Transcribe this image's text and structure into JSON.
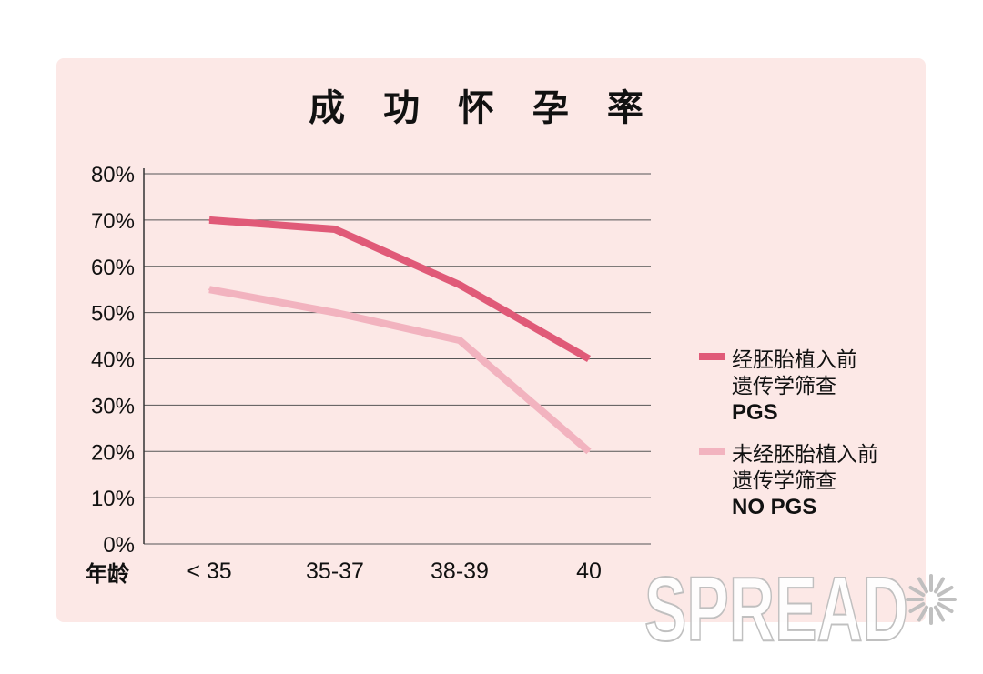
{
  "chart_data": {
    "type": "line",
    "title": "成 功 怀 孕 率",
    "xlabel": "年龄",
    "ylabel": "",
    "categories": [
      "< 35",
      "35-37",
      "38-39",
      "40"
    ],
    "y_ticks": [
      "80%",
      "70%",
      "60%",
      "50%",
      "40%",
      "30%",
      "20%",
      "10%",
      "0%"
    ],
    "ylim": [
      0,
      80
    ],
    "y_unit": "%",
    "grid": true,
    "legend_position": "right",
    "series": [
      {
        "name": "经胚胎植入前遗传学筛查 PGS",
        "legend_lines": [
          "经胚胎植入前",
          "遗传学筛查",
          "PGS"
        ],
        "values": [
          70,
          68,
          56,
          40
        ],
        "color": "#e05a78"
      },
      {
        "name": "未经胚胎植入前遗传学筛查 NO PGS",
        "legend_lines": [
          "未经胚胎植入前",
          "遗传学筛查",
          "NO PGS"
        ],
        "values": [
          55,
          50,
          44,
          20
        ],
        "color": "#f2b3bf"
      }
    ]
  },
  "watermark": {
    "text": "SPREAD",
    "icon": "sunburst-icon"
  },
  "colors": {
    "panel_background": "#fce8e6",
    "grid": "#555555",
    "text": "#111111"
  }
}
